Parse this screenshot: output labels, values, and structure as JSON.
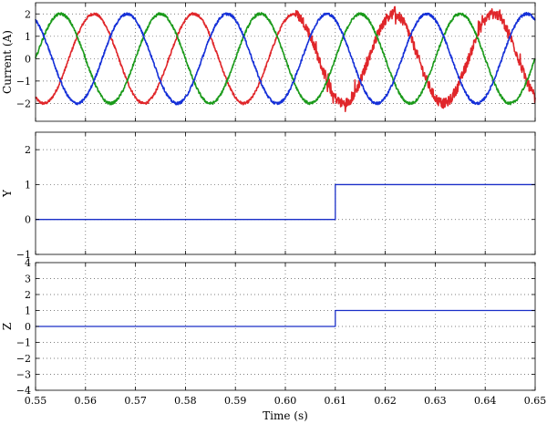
{
  "chart_data": [
    {
      "type": "line",
      "ylabel": "Current (A)",
      "xlim": [
        0.55,
        0.65
      ],
      "ylim": [
        -2.8,
        2.5
      ],
      "yticks": [
        -2,
        -1,
        0,
        1,
        2
      ],
      "grid": true,
      "series": [
        {
          "color": "#e0262a",
          "amplitude": 2.0,
          "frequency_hz": 50,
          "phase_deg": 240,
          "x": [
            0.55,
            0.555,
            0.56,
            0.565,
            0.57,
            0.575,
            0.58,
            0.585,
            0.59,
            0.595,
            0.6,
            0.605,
            0.61,
            0.615,
            0.62,
            0.625,
            0.63,
            0.635,
            0.64,
            0.645,
            0.65
          ],
          "y": [
            -1.73,
            1.0,
            1.73,
            -1.0,
            -1.73,
            1.0,
            1.73,
            -1.0,
            -1.73,
            1.0,
            1.73,
            0.8,
            1.0,
            -1.0,
            -1.73,
            0.9,
            1.5,
            -1.0,
            -1.73,
            1.0,
            1.4
          ]
        },
        {
          "color": "#1a9a1a",
          "amplitude": 2.0,
          "frequency_hz": 50,
          "phase_deg": 0,
          "x": [
            0.55,
            0.555,
            0.56,
            0.565,
            0.57,
            0.575,
            0.58,
            0.585,
            0.59,
            0.595,
            0.6,
            0.605,
            0.61,
            0.615,
            0.62,
            0.625,
            0.63,
            0.635,
            0.64,
            0.645,
            0.65
          ],
          "y": [
            0.0,
            2.0,
            0.0,
            -2.0,
            0.0,
            2.0,
            0.0,
            -2.0,
            0.0,
            2.0,
            0.0,
            2.0,
            0.0,
            -2.0,
            0.0,
            2.0,
            0.0,
            -2.0,
            0.0,
            2.0,
            0.0
          ]
        },
        {
          "color": "#1530d8",
          "amplitude": 2.0,
          "frequency_hz": 50,
          "phase_deg": 120,
          "x": [
            0.55,
            0.555,
            0.56,
            0.565,
            0.57,
            0.575,
            0.58,
            0.585,
            0.59,
            0.595,
            0.6,
            0.605,
            0.61,
            0.615,
            0.62,
            0.625,
            0.63,
            0.635,
            0.64,
            0.645,
            0.65
          ],
          "y": [
            1.73,
            -1.0,
            -1.73,
            1.0,
            1.73,
            -1.0,
            -1.73,
            1.0,
            1.73,
            -1.0,
            -1.73,
            1.0,
            1.73,
            -1.0,
            -1.73,
            1.0,
            1.73,
            -1.0,
            -1.73,
            1.0,
            1.73
          ]
        }
      ]
    },
    {
      "type": "line",
      "ylabel": "Y",
      "xlim": [
        0.55,
        0.65
      ],
      "ylim": [
        -1,
        2.5
      ],
      "yticks": [
        -1,
        0,
        1,
        2
      ],
      "grid": true,
      "series": [
        {
          "color": "#1a2fc8",
          "step": true,
          "x": [
            0.55,
            0.61,
            0.61,
            0.65
          ],
          "y": [
            0,
            0,
            1,
            1
          ]
        }
      ]
    },
    {
      "type": "line",
      "ylabel": "Z",
      "xlabel": "Time (s)",
      "xlim": [
        0.55,
        0.65
      ],
      "ylim": [
        -4,
        4
      ],
      "yticks": [
        -4,
        -3,
        -2,
        -1,
        0,
        1,
        2,
        3,
        4
      ],
      "xticks": [
        0.55,
        0.56,
        0.57,
        0.58,
        0.59,
        0.6,
        0.61,
        0.62,
        0.63,
        0.64,
        0.65
      ],
      "xtick_labels": [
        "0.55",
        "0.56",
        "0.57",
        "0.58",
        "0.59",
        "0.60",
        "0.61",
        "0.62",
        "0.63",
        "0.64",
        "0.65"
      ],
      "grid": true,
      "series": [
        {
          "color": "#1a2fc8",
          "step": true,
          "x": [
            0.55,
            0.61,
            0.61,
            0.65
          ],
          "y": [
            0,
            0,
            1,
            1
          ]
        }
      ]
    }
  ]
}
